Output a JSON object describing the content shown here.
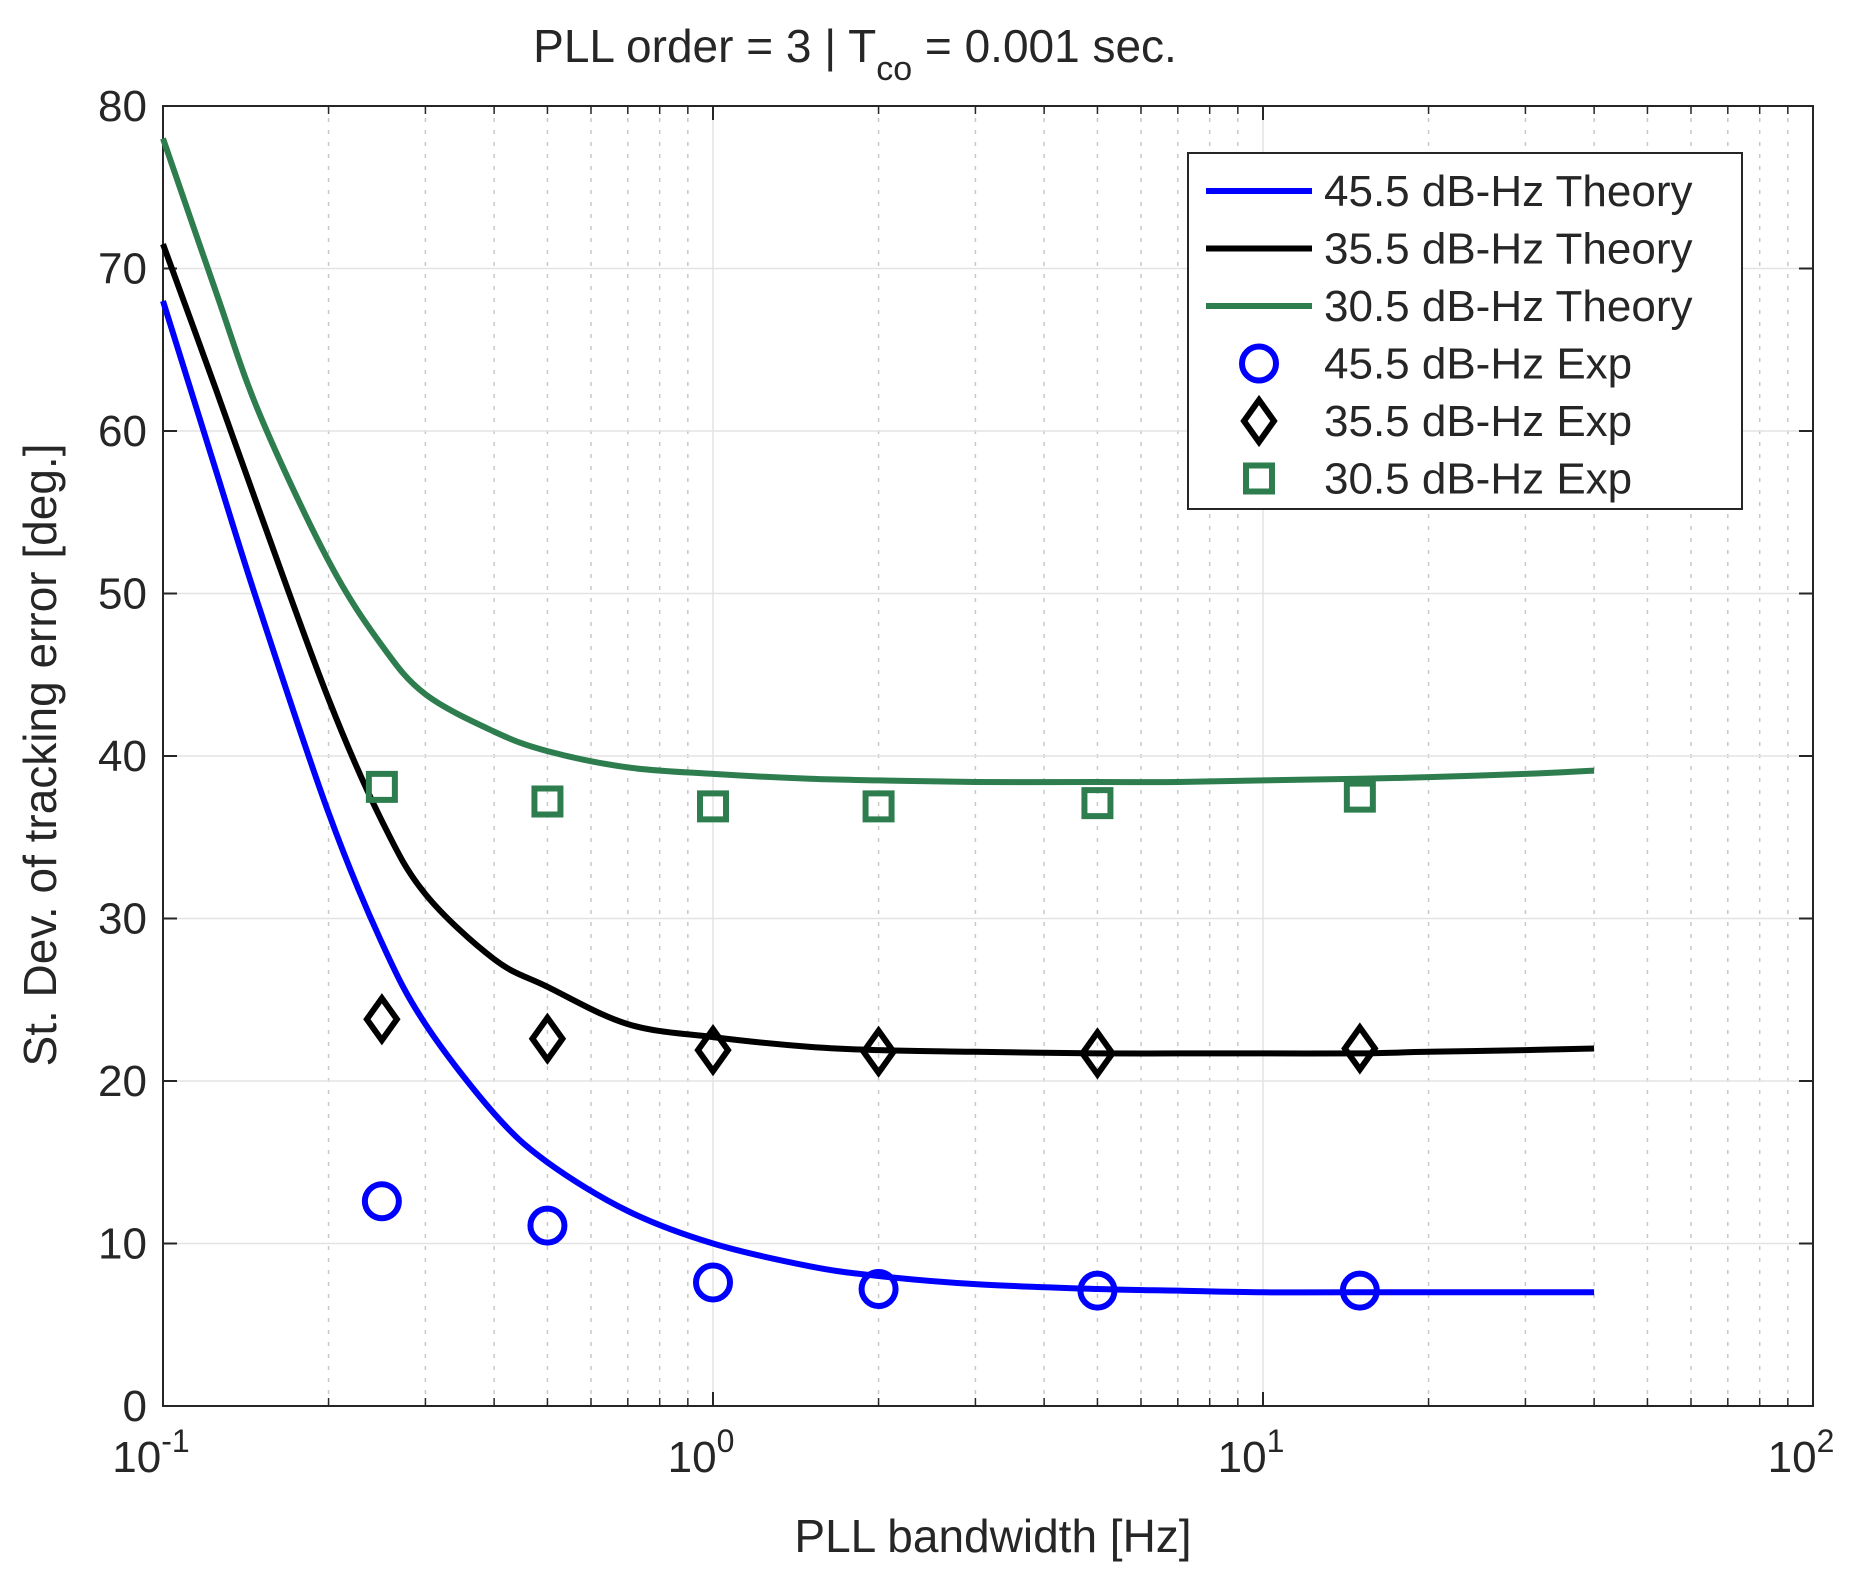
{
  "chart_data": {
    "type": "line",
    "title": "PLL order = 3  |  T",
    "title_subscript": "co",
    "title_suffix": " = 0.001 sec.",
    "xlabel": "PLL bandwidth [Hz]",
    "ylabel": "St. Dev. of tracking error [deg.]",
    "xscale": "log",
    "xlim": [
      0.1,
      100
    ],
    "ylim": [
      0,
      80
    ],
    "grid": true,
    "minor_grid": true,
    "legend_position": "top-right",
    "x_ticks": [
      {
        "value": 0.1,
        "base": "10",
        "exp": "-1"
      },
      {
        "value": 1,
        "base": "10",
        "exp": "0"
      },
      {
        "value": 10,
        "base": "10",
        "exp": "1"
      },
      {
        "value": 100,
        "base": "10",
        "exp": "2"
      }
    ],
    "y_ticks": [
      {
        "value": 0,
        "label": "0"
      },
      {
        "value": 10,
        "label": "10"
      },
      {
        "value": 20,
        "label": "20"
      },
      {
        "value": 30,
        "label": "30"
      },
      {
        "value": 40,
        "label": "40"
      },
      {
        "value": 50,
        "label": "50"
      },
      {
        "value": 60,
        "label": "60"
      },
      {
        "value": 70,
        "label": "70"
      },
      {
        "value": 80,
        "label": "80"
      }
    ],
    "series": [
      {
        "name": "45.5 dB-Hz Theory",
        "kind": "line",
        "color": "#0000ff",
        "x": [
          0.1,
          0.125,
          0.15,
          0.2,
          0.25,
          0.3,
          0.4,
          0.5,
          0.7,
          1,
          1.5,
          2,
          3,
          5,
          7,
          10,
          15,
          20,
          30,
          40
        ],
        "y": [
          68.0,
          57.5,
          49.0,
          36.5,
          28.5,
          23.5,
          18.0,
          15.0,
          12.0,
          10.0,
          8.6,
          8.0,
          7.5,
          7.2,
          7.1,
          7.0,
          7.0,
          7.0,
          7.0,
          7.0
        ]
      },
      {
        "name": "35.5 dB-Hz Theory",
        "kind": "line",
        "color": "#000000",
        "x": [
          0.1,
          0.125,
          0.15,
          0.2,
          0.25,
          0.3,
          0.4,
          0.5,
          0.7,
          1,
          1.5,
          2,
          3,
          5,
          7,
          10,
          15,
          20,
          30,
          40
        ],
        "y": [
          71.5,
          62.5,
          55.0,
          43.5,
          36.0,
          31.5,
          27.5,
          25.8,
          23.5,
          22.7,
          22.1,
          21.9,
          21.8,
          21.7,
          21.7,
          21.7,
          21.7,
          21.8,
          21.9,
          22.0
        ]
      },
      {
        "name": "30.5 dB-Hz Theory",
        "kind": "line",
        "color": "#2e7d4f",
        "x": [
          0.1,
          0.125,
          0.15,
          0.2,
          0.25,
          0.3,
          0.4,
          0.5,
          0.7,
          1,
          1.5,
          2,
          3,
          5,
          7,
          10,
          15,
          20,
          30,
          40
        ],
        "y": [
          78.0,
          68.5,
          61.0,
          52.0,
          46.8,
          43.8,
          41.5,
          40.3,
          39.3,
          38.9,
          38.6,
          38.5,
          38.4,
          38.4,
          38.4,
          38.5,
          38.6,
          38.7,
          38.9,
          39.1
        ]
      },
      {
        "name": "45.5 dB-Hz Exp",
        "kind": "marker",
        "marker": "circle",
        "color": "#0000ff",
        "x": [
          0.25,
          0.5,
          1,
          2,
          5,
          15
        ],
        "y": [
          12.6,
          11.1,
          7.6,
          7.2,
          7.1,
          7.1
        ]
      },
      {
        "name": "35.5 dB-Hz Exp",
        "kind": "marker",
        "marker": "diamond",
        "color": "#000000",
        "x": [
          0.25,
          0.5,
          1,
          2,
          5,
          15
        ],
        "y": [
          23.8,
          22.6,
          21.9,
          21.8,
          21.7,
          22.0
        ]
      },
      {
        "name": "30.5 dB-Hz Exp",
        "kind": "marker",
        "marker": "square",
        "color": "#2e7d4f",
        "x": [
          0.25,
          0.5,
          1,
          2,
          5,
          15
        ],
        "y": [
          38.1,
          37.2,
          36.9,
          36.9,
          37.1,
          37.5
        ]
      }
    ]
  }
}
